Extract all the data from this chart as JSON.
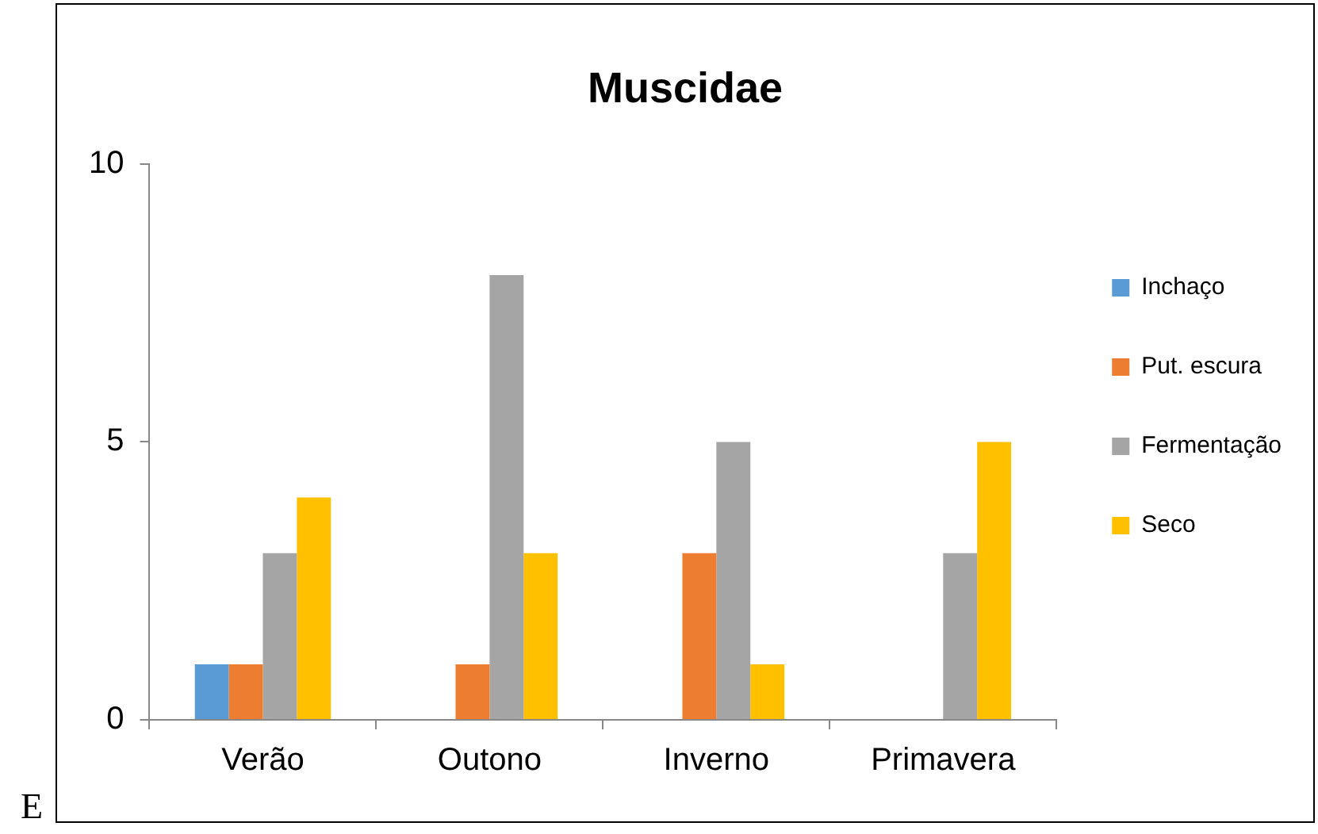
{
  "chart_data": {
    "type": "bar",
    "title": "Muscidae",
    "categories": [
      "Verão",
      "Outono",
      "Inverno",
      "Primavera"
    ],
    "series": [
      {
        "name": "Inchaço",
        "color": "#5b9bd5",
        "values": [
          1,
          0,
          0,
          0
        ]
      },
      {
        "name": "Put. escura",
        "color": "#ed7d31",
        "values": [
          1,
          1,
          3,
          0
        ]
      },
      {
        "name": "Fermentação",
        "color": "#a5a5a5",
        "values": [
          3,
          8,
          5,
          3
        ]
      },
      {
        "name": "Seco",
        "color": "#ffc000",
        "values": [
          4,
          3,
          1,
          5
        ]
      }
    ],
    "ylim": [
      0,
      10
    ],
    "yticks": [
      0,
      5,
      10
    ],
    "grid": false,
    "legend": "right",
    "annotations": [
      "E"
    ]
  }
}
